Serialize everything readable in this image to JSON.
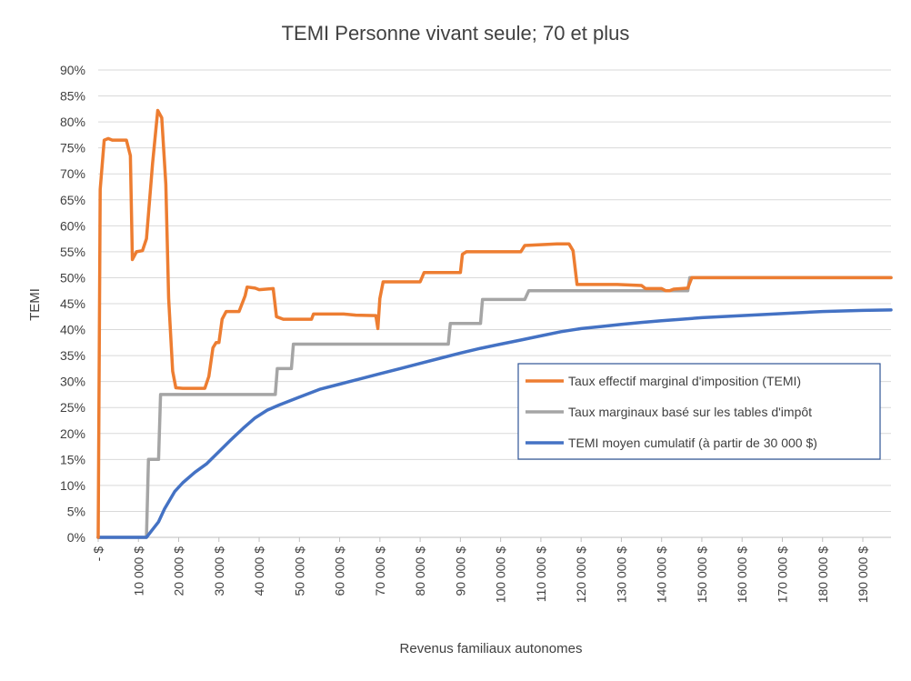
{
  "chart_data": {
    "type": "line",
    "title": "TEMI Personne vivant seule; 70 et plus",
    "xlabel": "Revenus familiaux autonomes",
    "ylabel": "TEMI",
    "xlim": [
      0,
      197000
    ],
    "ylim": [
      0,
      0.9
    ],
    "grid": true,
    "legend_position": "right-middle",
    "y_ticks": [
      "0%",
      "5%",
      "10%",
      "15%",
      "20%",
      "25%",
      "30%",
      "35%",
      "40%",
      "45%",
      "50%",
      "55%",
      "60%",
      "65%",
      "70%",
      "75%",
      "80%",
      "85%",
      "90%"
    ],
    "x_ticks": [
      {
        "value": 0,
        "label": "- $"
      },
      {
        "value": 10000,
        "label": "10 000 $"
      },
      {
        "value": 20000,
        "label": "20 000 $"
      },
      {
        "value": 30000,
        "label": "30 000 $"
      },
      {
        "value": 40000,
        "label": "40 000 $"
      },
      {
        "value": 50000,
        "label": "50 000 $"
      },
      {
        "value": 60000,
        "label": "60 000 $"
      },
      {
        "value": 70000,
        "label": "70 000 $"
      },
      {
        "value": 80000,
        "label": "80 000 $"
      },
      {
        "value": 90000,
        "label": "90 000 $"
      },
      {
        "value": 100000,
        "label": "100 000 $"
      },
      {
        "value": 110000,
        "label": "110 000 $"
      },
      {
        "value": 120000,
        "label": "120 000 $"
      },
      {
        "value": 130000,
        "label": "130 000 $"
      },
      {
        "value": 140000,
        "label": "140 000 $"
      },
      {
        "value": 150000,
        "label": "150 000 $"
      },
      {
        "value": 160000,
        "label": "160 000 $"
      },
      {
        "value": 170000,
        "label": "170 000 $"
      },
      {
        "value": 180000,
        "label": "180 000 $"
      },
      {
        "value": 190000,
        "label": "190 000 $"
      }
    ],
    "series": [
      {
        "name": "Taux effectif marginal d'imposition (TEMI)",
        "color": "#ED7D31",
        "points": [
          [
            0,
            0
          ],
          [
            500,
            0.67
          ],
          [
            1500,
            0.765
          ],
          [
            2500,
            0.768
          ],
          [
            3500,
            0.765
          ],
          [
            7000,
            0.765
          ],
          [
            8000,
            0.735
          ],
          [
            8500,
            0.535
          ],
          [
            9500,
            0.55
          ],
          [
            11000,
            0.552
          ],
          [
            12000,
            0.575
          ],
          [
            13500,
            0.72
          ],
          [
            14800,
            0.822
          ],
          [
            15800,
            0.808
          ],
          [
            16800,
            0.68
          ],
          [
            17500,
            0.46
          ],
          [
            18500,
            0.32
          ],
          [
            19300,
            0.288
          ],
          [
            21000,
            0.287
          ],
          [
            26500,
            0.287
          ],
          [
            27500,
            0.31
          ],
          [
            28500,
            0.365
          ],
          [
            29300,
            0.375
          ],
          [
            30000,
            0.375
          ],
          [
            30800,
            0.42
          ],
          [
            31800,
            0.435
          ],
          [
            35000,
            0.435
          ],
          [
            36500,
            0.465
          ],
          [
            37000,
            0.482
          ],
          [
            39000,
            0.48
          ],
          [
            40000,
            0.477
          ],
          [
            43500,
            0.479
          ],
          [
            44300,
            0.425
          ],
          [
            46000,
            0.42
          ],
          [
            53000,
            0.42
          ],
          [
            53500,
            0.43
          ],
          [
            61000,
            0.43
          ],
          [
            64000,
            0.428
          ],
          [
            69000,
            0.427
          ],
          [
            69500,
            0.402
          ],
          [
            70000,
            0.46
          ],
          [
            70800,
            0.492
          ],
          [
            73000,
            0.492
          ],
          [
            80000,
            0.492
          ],
          [
            81000,
            0.51
          ],
          [
            88000,
            0.51
          ],
          [
            90000,
            0.51
          ],
          [
            90500,
            0.545
          ],
          [
            91500,
            0.55
          ],
          [
            100000,
            0.55
          ],
          [
            105000,
            0.55
          ],
          [
            106000,
            0.562
          ],
          [
            114000,
            0.565
          ],
          [
            117000,
            0.565
          ],
          [
            118000,
            0.552
          ],
          [
            119000,
            0.487
          ],
          [
            129000,
            0.487
          ],
          [
            135000,
            0.485
          ],
          [
            136000,
            0.479
          ],
          [
            140000,
            0.479
          ],
          [
            141000,
            0.475
          ],
          [
            142000,
            0.475
          ],
          [
            143000,
            0.478
          ],
          [
            145000,
            0.479
          ],
          [
            146500,
            0.48
          ],
          [
            147500,
            0.5
          ],
          [
            155000,
            0.5
          ],
          [
            162000,
            0.5
          ],
          [
            168000,
            0.5
          ],
          [
            175000,
            0.5
          ],
          [
            182000,
            0.5
          ],
          [
            197000,
            0.5
          ]
        ]
      },
      {
        "name": "Taux marginaux basé sur les tables d'impôt",
        "color": "#A5A5A5",
        "points": [
          [
            0,
            0
          ],
          [
            12000,
            0
          ],
          [
            12500,
            0.15
          ],
          [
            15000,
            0.15
          ],
          [
            15500,
            0.275
          ],
          [
            44000,
            0.275
          ],
          [
            44500,
            0.325
          ],
          [
            48000,
            0.325
          ],
          [
            48500,
            0.372
          ],
          [
            87000,
            0.372
          ],
          [
            87500,
            0.412
          ],
          [
            95000,
            0.412
          ],
          [
            95500,
            0.458
          ],
          [
            106000,
            0.458
          ],
          [
            107000,
            0.475
          ],
          [
            146500,
            0.475
          ],
          [
            147000,
            0.5
          ],
          [
            197000,
            0.5
          ]
        ]
      },
      {
        "name": "TEMI moyen cumulatif (à partir de 30 000 $)",
        "color": "#4472C4",
        "points": [
          [
            0,
            0
          ],
          [
            12000,
            0
          ],
          [
            13000,
            0.01
          ],
          [
            15000,
            0.03
          ],
          [
            16500,
            0.055
          ],
          [
            19000,
            0.088
          ],
          [
            21000,
            0.105
          ],
          [
            24000,
            0.125
          ],
          [
            27000,
            0.142
          ],
          [
            30000,
            0.165
          ],
          [
            33000,
            0.188
          ],
          [
            36000,
            0.21
          ],
          [
            39000,
            0.23
          ],
          [
            42000,
            0.245
          ],
          [
            45000,
            0.255
          ],
          [
            50000,
            0.27
          ],
          [
            55000,
            0.285
          ],
          [
            60000,
            0.295
          ],
          [
            65000,
            0.305
          ],
          [
            70000,
            0.315
          ],
          [
            75000,
            0.325
          ],
          [
            80000,
            0.335
          ],
          [
            85000,
            0.345
          ],
          [
            90000,
            0.355
          ],
          [
            95000,
            0.364
          ],
          [
            100000,
            0.372
          ],
          [
            105000,
            0.38
          ],
          [
            110000,
            0.388
          ],
          [
            115000,
            0.396
          ],
          [
            120000,
            0.402
          ],
          [
            125000,
            0.406
          ],
          [
            130000,
            0.41
          ],
          [
            135000,
            0.414
          ],
          [
            140000,
            0.417
          ],
          [
            145000,
            0.42
          ],
          [
            150000,
            0.423
          ],
          [
            155000,
            0.425
          ],
          [
            160000,
            0.427
          ],
          [
            165000,
            0.429
          ],
          [
            170000,
            0.431
          ],
          [
            175000,
            0.433
          ],
          [
            180000,
            0.435
          ],
          [
            185000,
            0.436
          ],
          [
            190000,
            0.437
          ],
          [
            197000,
            0.438
          ]
        ]
      }
    ]
  }
}
